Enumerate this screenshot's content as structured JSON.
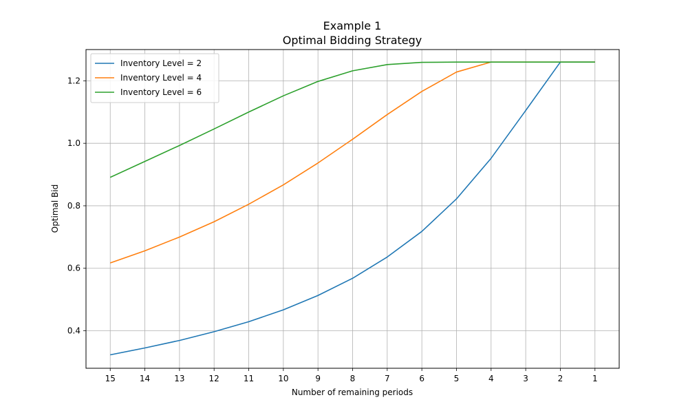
{
  "chart_data": {
    "type": "line",
    "title": "Example 1",
    "subtitle": "Optimal Bidding Strategy",
    "xlabel": "Number of remaining periods",
    "ylabel": "Optimal Bid",
    "x": [
      15,
      14,
      13,
      12,
      11,
      10,
      9,
      8,
      7,
      6,
      5,
      4,
      3,
      2,
      1
    ],
    "x_reversed": true,
    "ylim": [
      0.28,
      1.3
    ],
    "yticks": [
      0.4,
      0.6,
      0.8,
      1.0,
      1.2
    ],
    "ytick_labels": [
      "0.4",
      "0.6",
      "0.8",
      "1.0",
      "1.2"
    ],
    "xtick_labels": [
      "15",
      "14",
      "13",
      "12",
      "11",
      "10",
      "9",
      "8",
      "7",
      "6",
      "5",
      "4",
      "3",
      "2",
      "1"
    ],
    "grid": true,
    "legend_position": "top-left",
    "series": [
      {
        "name": "Inventory Level = 2",
        "color": "#1f77b4",
        "values": [
          0.323,
          0.345,
          0.369,
          0.397,
          0.429,
          0.467,
          0.513,
          0.568,
          0.636,
          0.718,
          0.822,
          0.952,
          1.105,
          1.26,
          1.26
        ]
      },
      {
        "name": "Inventory Level = 4",
        "color": "#ff7f0e",
        "values": [
          0.617,
          0.656,
          0.7,
          0.749,
          0.805,
          0.867,
          0.937,
          1.013,
          1.092,
          1.166,
          1.228,
          1.26,
          1.26,
          1.26,
          1.26
        ]
      },
      {
        "name": "Inventory Level = 6",
        "color": "#2ca02c",
        "values": [
          0.891,
          0.942,
          0.993,
          1.046,
          1.1,
          1.152,
          1.198,
          1.232,
          1.252,
          1.259,
          1.26,
          1.26,
          1.26,
          1.26,
          1.26
        ]
      }
    ]
  }
}
